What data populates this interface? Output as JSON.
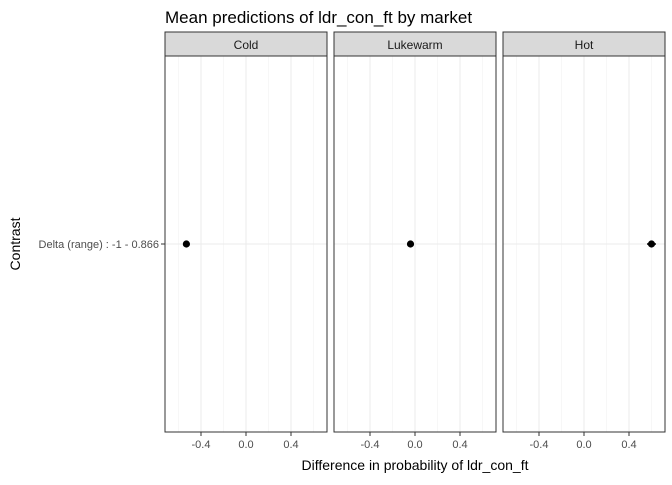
{
  "chart_data": {
    "type": "scatter",
    "title": "Mean predictions of ldr_con_ft by market",
    "xlabel": "Difference in probability of ldr_con_ft",
    "ylabel": "Contrast",
    "xlim": [
      -0.72,
      0.72
    ],
    "x_ticks": [
      -0.4,
      0.0,
      0.4
    ],
    "x_tick_labels": [
      "-0.4",
      "0.0",
      "0.4"
    ],
    "y_categories": [
      "Delta (range) : -1 - 0.866"
    ],
    "grid": true,
    "panels": [
      {
        "label": "Cold",
        "estimate": -0.53,
        "ci_low": -0.56,
        "ci_high": -0.5
      },
      {
        "label": "Lukewarm",
        "estimate": -0.04,
        "ci_low": -0.07,
        "ci_high": -0.01
      },
      {
        "label": "Hot",
        "estimate": 0.6,
        "ci_low": 0.56,
        "ci_high": 0.64
      }
    ],
    "colors": {
      "strip_fill": "#d9d9d9",
      "border": "#333333",
      "grid_major": "#ebebeb",
      "grid_minor": "#f5f5f5",
      "point": "#000000",
      "text": "#000000",
      "tick_text": "#4d4d4d"
    }
  }
}
